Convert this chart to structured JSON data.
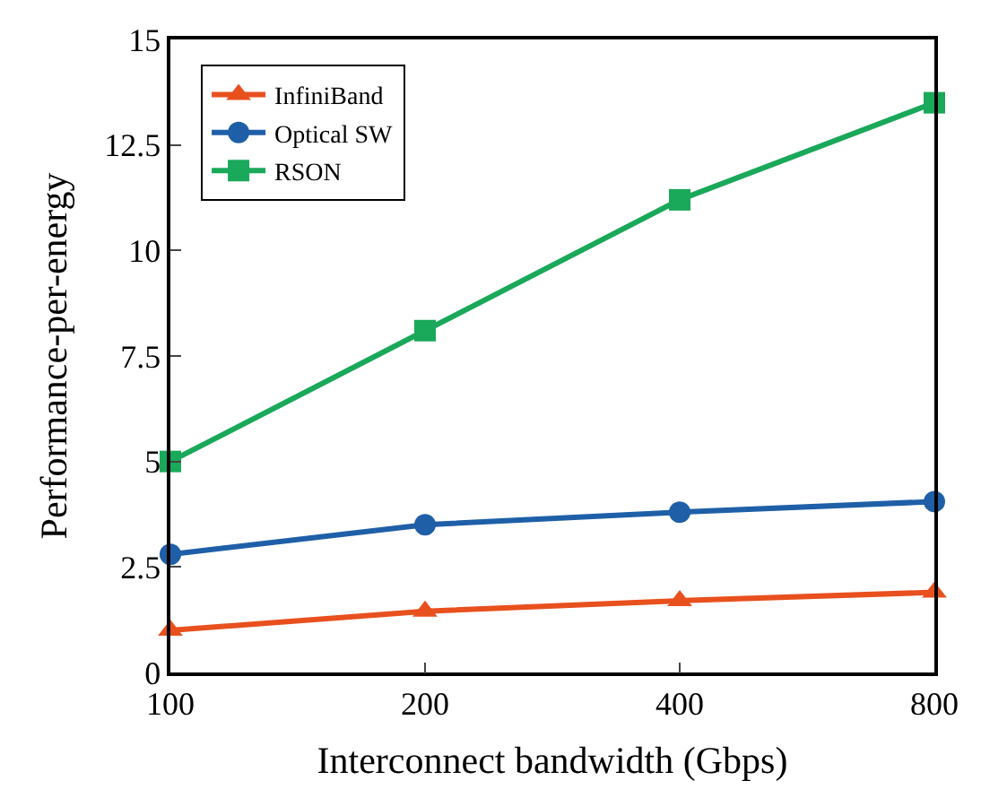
{
  "chart_data": {
    "type": "line",
    "xlabel": "Interconnect bandwidth (Gbps)",
    "ylabel": "Performance-per-energy",
    "x": [
      100,
      200,
      400,
      800
    ],
    "log": "x",
    "xlim": [
      100,
      800
    ],
    "xticks": [
      100,
      200,
      400,
      800
    ],
    "ylim": [
      0,
      15
    ],
    "yticks": [
      0,
      2.5,
      5,
      7.5,
      10,
      12.5,
      15
    ],
    "legend": "top left",
    "series": [
      {
        "name": "InfiniBand",
        "color": "#e8501e",
        "marker": "triangle",
        "values": [
          1.0,
          1.45,
          1.7,
          1.9
        ]
      },
      {
        "name": "Optical SW",
        "color": "#1f5fa8",
        "marker": "circle",
        "values": [
          2.8,
          3.5,
          3.8,
          4.05
        ]
      },
      {
        "name": "RSON",
        "color": "#1aa85a",
        "marker": "square",
        "values": [
          5.0,
          8.1,
          11.2,
          13.5
        ]
      }
    ]
  }
}
